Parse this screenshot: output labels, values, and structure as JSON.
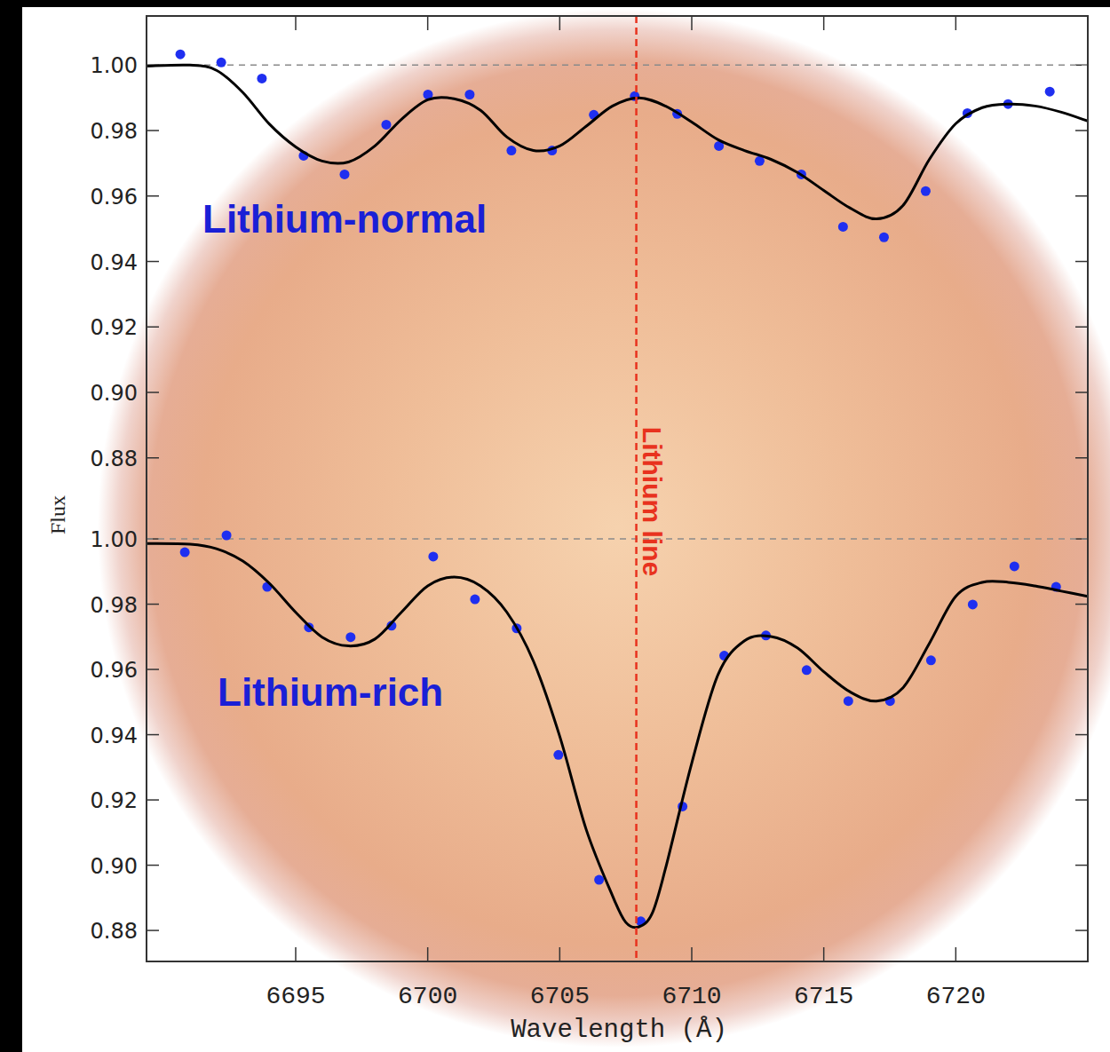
{
  "chart_data": {
    "type": "line",
    "xlabel": "Wavelength (Å)",
    "ylabel": "Flux",
    "xlim": [
      6689.35,
      6725.0
    ],
    "xticks": [
      6695,
      6700,
      6705,
      6710,
      6715,
      6720
    ],
    "annotation": {
      "x": 6707.9,
      "text": "Lithium line",
      "color": "#e8321e",
      "line_style": "dashed"
    },
    "panels": [
      {
        "title": "Lithium-normal",
        "ylim": [
          0.868,
          1.015
        ],
        "yticks": [
          0.88,
          {
            "value": 0.9,
            "label": "0.90"
          },
          0.92,
          0.94,
          0.96,
          0.98,
          {
            "value": 1,
            "label": "1.00"
          }
        ],
        "continuum": 1,
        "series": [
          {
            "type": "scatter",
            "color": "#1f2ff0",
            "marker": "circle",
            "x": [
              6690.63,
              6692.18,
              6693.72,
              6695.3,
              6696.85,
              6698.43,
              6700.01,
              6701.59,
              6703.17,
              6704.71,
              6706.29,
              6707.84,
              6709.45,
              6711.03,
              6712.57,
              6714.15,
              6715.73,
              6717.28,
              6718.86,
              6720.44,
              6721.98,
              6723.56
            ],
            "values": [
              1.0033,
              1.0008,
              0.9959,
              0.9723,
              0.9666,
              0.9818,
              0.991,
              0.991,
              0.9739,
              0.9739,
              0.9848,
              0.9905,
              0.9851,
              0.9753,
              0.9707,
              0.9666,
              0.9506,
              0.9474,
              0.9615,
              0.9853,
              0.9881,
              0.9919
            ]
          },
          {
            "type": "line",
            "color": "#000000",
            "line_style": "solid",
            "x": [
              6689.35,
              6691,
              6692,
              6693,
              6694,
              6695,
              6696,
              6697,
              6698,
              6699,
              6700,
              6701,
              6702,
              6703,
              6704,
              6705,
              6706,
              6707,
              6708,
              6709,
              6710,
              6711,
              6712,
              6713,
              6714,
              6715,
              6716,
              6717,
              6718,
              6719,
              6720,
              6721,
              6722,
              6723,
              6724,
              6725
            ],
            "values": [
              0.9997,
              1.0,
              0.9984,
              0.9916,
              0.982,
              0.975,
              0.9707,
              0.9704,
              0.9753,
              0.9834,
              0.9894,
              0.9897,
              0.9862,
              0.978,
              0.9739,
              0.9753,
              0.9813,
              0.9875,
              0.99,
              0.9875,
              0.9826,
              0.9772,
              0.9739,
              0.9712,
              0.9672,
              0.9617,
              0.9563,
              0.953,
              0.9571,
              0.9712,
              0.9821,
              0.987,
              0.9881,
              0.9875,
              0.9856,
              0.9829
            ]
          }
        ]
      },
      {
        "title": "Lithium-rich",
        "ylim": [
          0.8705,
          1.0128
        ],
        "yticks": [
          0.88,
          {
            "value": 0.9,
            "label": "0.90"
          },
          0.92,
          0.94,
          0.96,
          0.98,
          {
            "value": 1,
            "label": "1.00"
          }
        ],
        "continuum": 1,
        "series": [
          {
            "type": "scatter",
            "color": "#1f2ff0",
            "marker": "circle",
            "x": [
              6690.8,
              6692.38,
              6693.92,
              6695.5,
              6697.08,
              6698.63,
              6700.21,
              6701.79,
              6703.37,
              6704.95,
              6706.49,
              6708.07,
              6709.65,
              6711.23,
              6712.81,
              6714.35,
              6715.93,
              6717.51,
              6719.06,
              6720.64,
              6722.22,
              6723.8
            ],
            "values": [
              0.9959,
              1.0011,
              0.9853,
              0.9729,
              0.9699,
              0.9734,
              0.9946,
              0.9815,
              0.9726,
              0.9338,
              0.8955,
              0.8828,
              0.918,
              0.9642,
              0.9704,
              0.9598,
              0.9503,
              0.9503,
              0.9628,
              0.9799,
              0.9916,
              0.9853
            ]
          },
          {
            "type": "line",
            "color": "#000000",
            "line_style": "solid",
            "x": [
              6689.35,
              6691,
              6692,
              6693,
              6694,
              6695,
              6696,
              6697,
              6698,
              6699,
              6700,
              6701,
              6702,
              6703,
              6704,
              6705,
              6706,
              6707,
              6707.5,
              6708,
              6708.5,
              6709,
              6710,
              6711,
              6712,
              6713,
              6714,
              6715,
              6716,
              6717,
              6718,
              6719,
              6720,
              6721,
              6722,
              6723,
              6724,
              6725
            ],
            "values": [
              0.9986,
              0.9984,
              0.997,
              0.9932,
              0.9864,
              0.9775,
              0.9699,
              0.9672,
              0.9693,
              0.9775,
              0.9856,
              0.9883,
              0.9856,
              0.9775,
              0.9626,
              0.9395,
              0.911,
              0.8906,
              0.8825,
              0.8811,
              0.8852,
              0.8988,
              0.9313,
              0.9585,
              0.9688,
              0.9701,
              0.9666,
              0.9593,
              0.9531,
              0.9503,
              0.9544,
              0.968,
              0.9824,
              0.9867,
              0.9867,
              0.9856,
              0.984,
              0.9824
            ]
          }
        ]
      }
    ]
  }
}
